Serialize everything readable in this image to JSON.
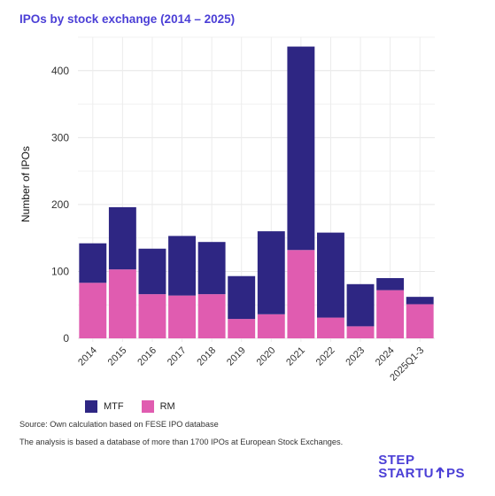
{
  "title": "IPOs by stock exchange (2014 – 2025)",
  "chart_data": {
    "type": "bar",
    "stacked": true,
    "title": "IPOs by stock exchange (2014 – 2025)",
    "xlabel": "",
    "ylabel": "Number of IPOs",
    "categories": [
      "2014",
      "2015",
      "2016",
      "2017",
      "2018",
      "2019",
      "2020",
      "2021",
      "2022",
      "2023",
      "2024",
      "2025Q1-3"
    ],
    "series": [
      {
        "name": "RM",
        "color": "#e05cb0",
        "values": [
          83,
          103,
          66,
          64,
          66,
          29,
          36,
          132,
          31,
          18,
          72,
          51
        ]
      },
      {
        "name": "MTF",
        "color": "#2e2683",
        "values": [
          59,
          93,
          68,
          89,
          78,
          64,
          124,
          304,
          127,
          63,
          18,
          11
        ]
      }
    ],
    "yticks": [
      0,
      100,
      200,
      300,
      400
    ],
    "ylim": [
      0,
      450
    ],
    "grid": true,
    "legend": "bottom-left"
  },
  "legend": {
    "mtf_label": "MTF",
    "rm_label": "RM",
    "mtf_color": "#2e2683",
    "rm_color": "#e05cb0"
  },
  "notes": {
    "source": "Source: Own calculation  based on FESE IPO database",
    "analysis": "The analysis is based a database of more than 1700 IPOs at European Stock Exchanges."
  },
  "logo": {
    "line1": "STEP",
    "line2_a": "STARTU",
    "line2_b": "PS"
  }
}
